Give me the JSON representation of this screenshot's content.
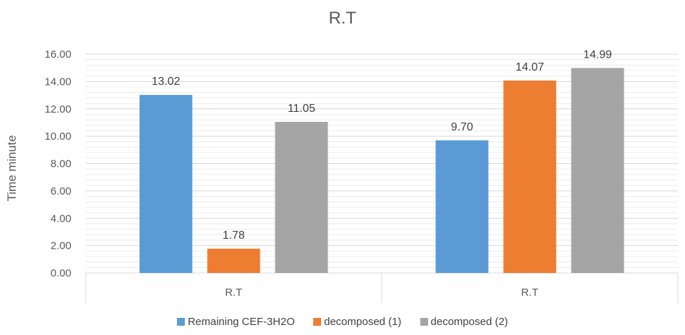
{
  "chart_data": {
    "type": "bar",
    "title": "R.T",
    "ylabel": "Time minute",
    "xlabel": "",
    "categories": [
      "R.T",
      "R.T"
    ],
    "ylim": [
      0,
      16
    ],
    "yticks": [
      "0.00",
      "2.00",
      "4.00",
      "6.00",
      "8.00",
      "10.00",
      "12.00",
      "14.00",
      "16.00"
    ],
    "grid": true,
    "legend_position": "bottom",
    "series": [
      {
        "name": "Remaining CEF-3H2O",
        "color": "#5b9bd5",
        "values": [
          13.02,
          9.7
        ],
        "labels": [
          "13.02",
          "9.70"
        ]
      },
      {
        "name": "decomposed (1)",
        "color": "#ed7d31",
        "values": [
          1.78,
          14.07
        ],
        "labels": [
          "1.78",
          "14.07"
        ]
      },
      {
        "name": "decomposed (2)",
        "color": "#a5a5a5",
        "values": [
          11.05,
          14.99
        ],
        "labels": [
          "11.05",
          "14.99"
        ]
      }
    ]
  }
}
